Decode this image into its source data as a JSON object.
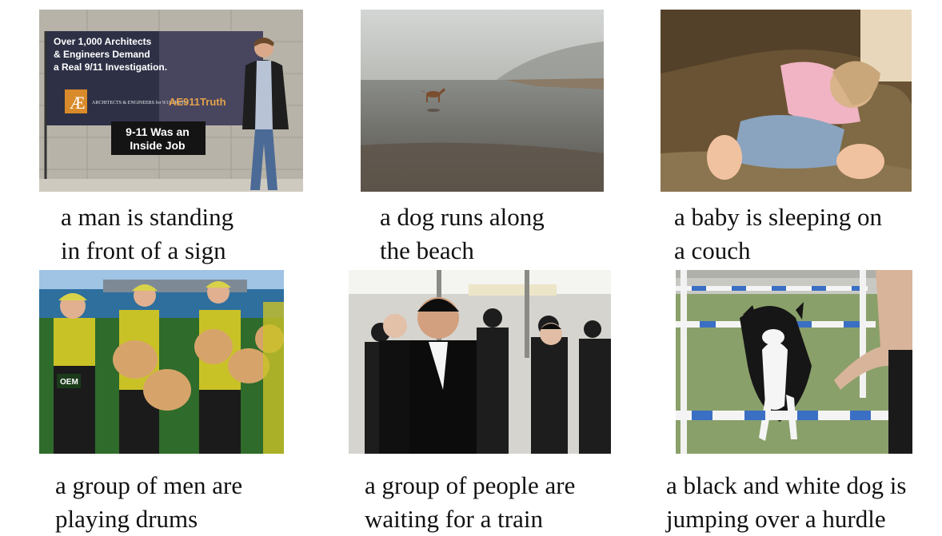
{
  "figure": {
    "items": [
      {
        "caption_lines": [
          "a man is standing",
          "in front of a sign"
        ],
        "photo": {
          "banner_lines": [
            "Over 1,000 Architects",
            "& Engineers Demand",
            "a Real 9/11 Investigation."
          ],
          "logo_text": "ARCHITECTS & ENGINEERS for 9/11 TRUTH",
          "brand_text": "AE911Truth",
          "sign_lines": [
            "9-11 Was an",
            "Inside Job"
          ]
        }
      },
      {
        "caption_lines": [
          "a dog runs along",
          "the beach"
        ]
      },
      {
        "caption_lines": [
          "a baby is sleeping on",
          "a couch"
        ]
      },
      {
        "caption_lines": [
          "a group of men are",
          "playing drums"
        ],
        "photo": {
          "arm_text": "OEM"
        }
      },
      {
        "caption_lines": [
          "a group of people are",
          "waiting for a train"
        ]
      },
      {
        "caption_lines": [
          "a black and white dog is",
          "jumping over a hurdle"
        ]
      }
    ]
  }
}
